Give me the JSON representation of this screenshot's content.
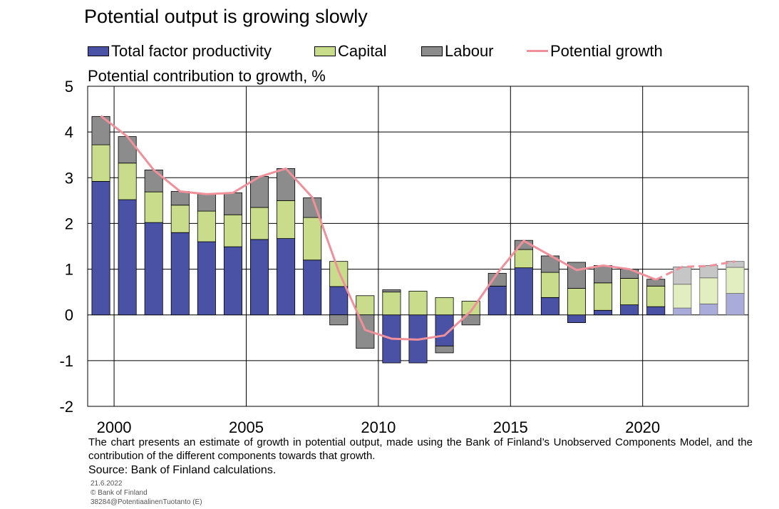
{
  "title": "Potential output is growing slowly",
  "footnote": "The chart presents an estimate of growth in potential output, made using the Bank of Finland’s Unobserved Components Model, and the contribution of the different components towards that growth.",
  "source": "Source: Bank of Finland calculations.",
  "meta": {
    "date": "21.6.2022",
    "copyright": "© Bank of Finland",
    "file_id": "38284@PotentiaalinenTuotanto (E)"
  },
  "colors": {
    "tfp": "#4a52a5",
    "capital": "#c8dc8c",
    "labour": "#8c8c8c",
    "potential": "#f0909a",
    "tfp_forecast": "#a9acd9",
    "capital_forecast": "#e2edc0",
    "labour_forecast": "#c6c6c6"
  },
  "chart_data": {
    "type": "bar",
    "stacked": true,
    "title": "Potential output is growing slowly",
    "ylabel": "Potential contribution to growth, %",
    "ylim": [
      -2,
      5
    ],
    "yticks": [
      -2,
      -1,
      0,
      1,
      2,
      3,
      4,
      5
    ],
    "xtick_labels": [
      "2000",
      "2005",
      "2010",
      "2015",
      "2020"
    ],
    "grid": true,
    "legend_position": "top",
    "categories": [
      1999,
      2000,
      2001,
      2002,
      2003,
      2004,
      2005,
      2006,
      2007,
      2008,
      2009,
      2010,
      2011,
      2012,
      2013,
      2014,
      2015,
      2016,
      2017,
      2018,
      2019,
      2020,
      2021,
      2022,
      2023
    ],
    "forecast_from": 2021,
    "series": [
      {
        "name": "Total factor productivity",
        "kind": "bar",
        "values": [
          2.92,
          2.52,
          2.02,
          1.8,
          1.6,
          1.49,
          1.65,
          1.67,
          1.2,
          0.62,
          0.0,
          -1.05,
          -1.05,
          -0.68,
          0.0,
          0.63,
          1.03,
          0.38,
          -0.17,
          0.1,
          0.22,
          0.18,
          0.15,
          0.24,
          0.47
        ]
      },
      {
        "name": "Capital",
        "kind": "bar",
        "values": [
          0.8,
          0.8,
          0.67,
          0.6,
          0.67,
          0.7,
          0.7,
          0.83,
          0.93,
          0.55,
          0.42,
          0.5,
          0.52,
          0.38,
          0.3,
          0.0,
          0.4,
          0.55,
          0.58,
          0.6,
          0.58,
          0.45,
          0.52,
          0.57,
          0.57
        ]
      },
      {
        "name": "Labour",
        "kind": "bar",
        "values": [
          0.62,
          0.58,
          0.48,
          0.3,
          0.37,
          0.48,
          0.68,
          0.7,
          0.43,
          -0.22,
          -0.73,
          0.05,
          0.0,
          -0.15,
          -0.22,
          0.28,
          0.2,
          0.36,
          0.57,
          0.38,
          0.2,
          0.15,
          0.38,
          0.27,
          0.13
        ]
      },
      {
        "name": "Potential growth",
        "kind": "line",
        "values": [
          4.35,
          3.9,
          3.17,
          2.7,
          2.64,
          2.67,
          3.02,
          3.2,
          2.57,
          0.95,
          -0.33,
          -0.52,
          -0.54,
          -0.45,
          0.08,
          0.91,
          1.62,
          1.3,
          0.98,
          1.08,
          1.0,
          0.77,
          1.05,
          1.07,
          1.17
        ]
      }
    ]
  }
}
